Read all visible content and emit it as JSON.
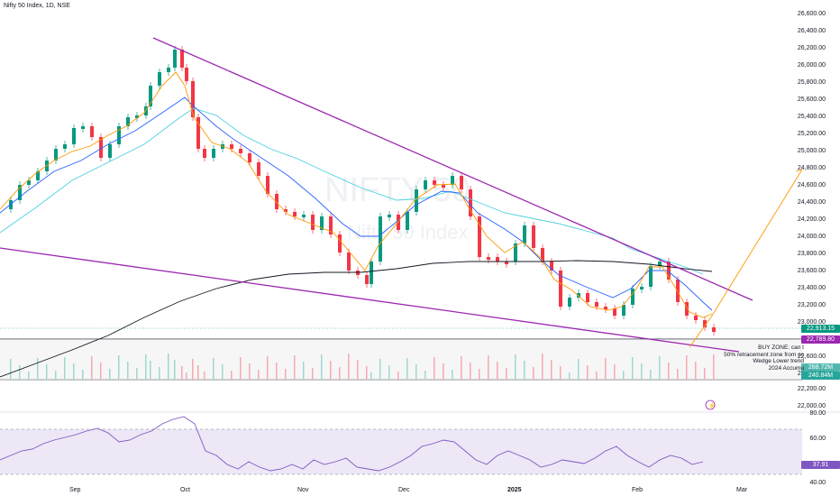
{
  "title": "Nifty 50 Index, 1D, NSE",
  "watermark": "NIFTY 50",
  "watermark_sub": "Nifty 50 Index",
  "colors": {
    "up": "#089981",
    "down": "#f23645",
    "trendline": "#9c27b0",
    "ema_fast": "#ff9800",
    "ema_mid": "#2962ff",
    "ema_slow": "#4dd0e1",
    "ma_long": "#131722",
    "projection": "#ff9800",
    "rsi": "#7e57c2"
  },
  "price_axis": [
    "26,600.00",
    "26,400.00",
    "26,200.00",
    "26,000.00",
    "25,800.00",
    "25,600.00",
    "25,400.00",
    "25,200.00",
    "25,000.00",
    "24,800.00",
    "24,600.00",
    "24,400.00",
    "24,200.00",
    "24,000.00",
    "23,800.00",
    "23,600.00",
    "23,400.00",
    "23,200.00",
    "23,000.00",
    "22,600.00",
    "22,400.00",
    "22,200.00",
    "22,000.00"
  ],
  "badges": {
    "last_price": "22,913.15",
    "level": "22,789.80",
    "vol1": "288.72M",
    "vol2": "240.84M",
    "rsi": "37.91"
  },
  "rsi_axis": [
    "80.00",
    "60.00",
    "40.00"
  ],
  "note_lines": [
    "BUY ZONE: can t",
    "50% retracement zone from oc",
    "Wedge Lower trend",
    "2024 Accumu"
  ],
  "time_axis": [
    "Sep",
    "Oct",
    "Nov",
    "Dec",
    "2025",
    "Feb",
    "Mar"
  ]
}
